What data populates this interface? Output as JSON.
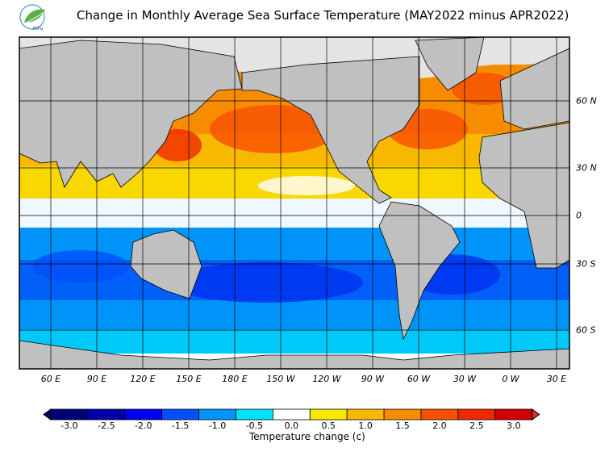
{
  "header": {
    "title": "Change in Monthly Average Sea Surface Temperature (MAY2022 minus APR2022)",
    "logo_text": "สสน"
  },
  "map": {
    "longitude_labels": [
      "60 E",
      "90 E",
      "120 E",
      "150 E",
      "180 E",
      "150 W",
      "120 W",
      "90 W",
      "60 W",
      "30 W",
      "0 W",
      "30 E"
    ],
    "latitude_labels": [
      "60 N",
      "30 N",
      "0",
      "30 S",
      "60 S"
    ],
    "land_color": "#c0c0c0",
    "ice_color": "#e4e4e4",
    "summary": {
      "north": "warming",
      "south": "cooling"
    }
  },
  "colorbar": {
    "title": "Temperature change  (c)",
    "tick_labels": [
      "-3.0",
      "-2.5",
      "-2.0",
      "-1.5",
      "-1.0",
      "-0.5",
      "0.0",
      "0.5",
      "1.0",
      "1.5",
      "2.0",
      "2.5",
      "3.0"
    ],
    "colors": [
      "#000078",
      "#0000a8",
      "#0000f0",
      "#0050f8",
      "#0094f8",
      "#00e0f8",
      "#ffffff",
      "#f8e800",
      "#f8b800",
      "#f88c00",
      "#f85000",
      "#f02800",
      "#d00000"
    ],
    "under_color": "#000060",
    "over_color": "#e03030"
  }
}
